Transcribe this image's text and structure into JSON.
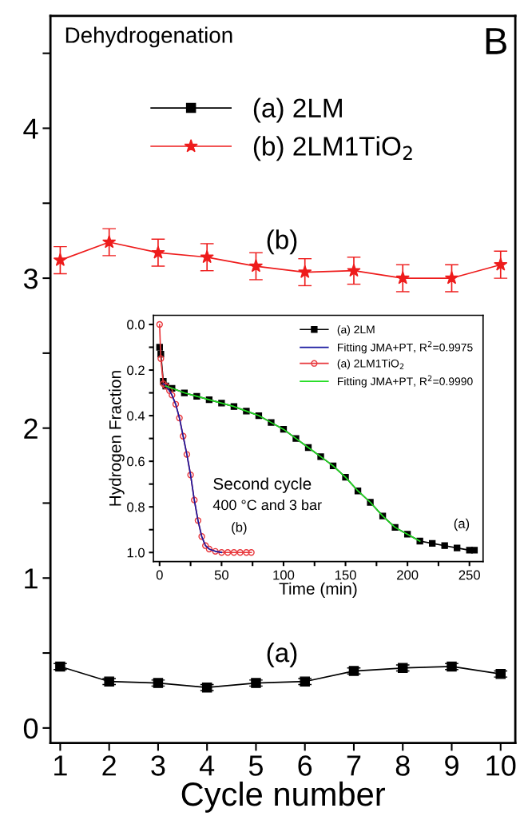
{
  "chart_data": [
    {
      "type": "line",
      "xlabel": "Cycle number",
      "x": [
        1,
        2,
        3,
        4,
        5,
        6,
        7,
        8,
        9,
        10
      ],
      "xlim": [
        0.8,
        10.3
      ],
      "xticks": [
        1,
        2,
        3,
        4,
        5,
        6,
        7,
        8,
        9,
        10
      ],
      "ylim": [
        -0.1,
        4.75
      ],
      "yticks": [
        0,
        {
          "value": 0.5,
          "label": null
        },
        1,
        {
          "value": 1.5,
          "label": null
        },
        2,
        {
          "value": 2.5,
          "label": null
        },
        3,
        {
          "value": 3.5,
          "label": null
        },
        4,
        {
          "value": 4.5,
          "label": null
        }
      ],
      "legend": "top",
      "grid": false,
      "series": [
        {
          "name": "(a) 2LM",
          "color": "#000000",
          "marker": "square",
          "values": [
            0.41,
            0.31,
            0.3,
            0.27,
            0.3,
            0.31,
            0.38,
            0.4,
            0.41,
            0.36
          ],
          "errors": [
            0.02,
            0.02,
            0.02,
            0.02,
            0.02,
            0.02,
            0.02,
            0.02,
            0.02,
            0.02
          ]
        },
        {
          "name": "(b) 2LM1TiO$_{2}$",
          "color": "#ee1c1c",
          "marker": "star",
          "values": [
            3.12,
            3.24,
            3.17,
            3.14,
            3.08,
            3.04,
            3.05,
            3.0,
            3.0,
            3.09
          ],
          "errors": [
            0.09,
            0.09,
            0.09,
            0.09,
            0.09,
            0.09,
            0.09,
            0.09,
            0.09,
            0.09
          ]
        }
      ],
      "annotations": [
        "Dehydrogenation",
        "B",
        "(b)",
        "(a)"
      ]
    },
    {
      "type": "line",
      "xlabel": "Time (min)",
      "ylabel": "Hydrogen Fraction",
      "xlim": [
        -5,
        261
      ],
      "xticks": [
        0,
        {
          "value": 25,
          "label": null
        },
        50,
        {
          "value": 75,
          "label": null
        },
        100,
        {
          "value": 125,
          "label": null
        },
        150,
        {
          "value": 175,
          "label": null
        },
        200,
        {
          "value": 225,
          "label": null
        },
        250
      ],
      "ylim": [
        1.04,
        -0.04
      ],
      "yticks": [
        {
          "value": 0.0,
          "label": "0.0"
        },
        {
          "value": 0.1,
          "label": null
        },
        0.2,
        {
          "value": 0.3,
          "label": null
        },
        0.4,
        {
          "value": 0.5,
          "label": null
        },
        0.6,
        {
          "value": 0.7,
          "label": null
        },
        0.8,
        {
          "value": 0.9,
          "label": null
        },
        {
          "value": 1.0,
          "label": "1.0"
        }
      ],
      "legend": "top right",
      "grid": false,
      "series": [
        {
          "name": "(a) 2LM",
          "color": "#000000",
          "marker": "square",
          "x": [
            0,
            1,
            3,
            5,
            10,
            20,
            30,
            40,
            50,
            60,
            70,
            80,
            90,
            100,
            110,
            120,
            130,
            140,
            150,
            160,
            170,
            180,
            190,
            200,
            210,
            220,
            230,
            240,
            250,
            254
          ],
          "values": [
            0.1,
            0.13,
            0.25,
            0.27,
            0.28,
            0.3,
            0.315,
            0.33,
            0.345,
            0.36,
            0.38,
            0.4,
            0.43,
            0.46,
            0.5,
            0.54,
            0.58,
            0.62,
            0.67,
            0.73,
            0.78,
            0.84,
            0.89,
            0.92,
            0.95,
            0.96,
            0.97,
            0.98,
            0.99,
            0.99
          ]
        },
        {
          "name": "Fitting JMA+PT, R$^{2}$=0.9975",
          "color": "#1a1aa0",
          "marker": "none",
          "x": [
            3,
            5,
            8,
            10,
            13,
            16,
            19,
            22,
            25,
            28,
            31,
            34,
            37,
            40,
            45,
            50
          ],
          "values": [
            0.26,
            0.27,
            0.29,
            0.31,
            0.35,
            0.41,
            0.49,
            0.57,
            0.66,
            0.77,
            0.86,
            0.93,
            0.97,
            0.985,
            0.995,
            1.0
          ]
        },
        {
          "name": "(a) 2LM1TiO$_{2}$",
          "color": "#e8383d",
          "marker": "circle",
          "x": [
            0,
            1,
            3,
            5,
            8,
            10,
            13,
            16,
            19,
            22,
            25,
            28,
            31,
            34,
            37,
            40,
            45,
            50,
            55,
            60,
            65,
            70,
            74
          ],
          "values": [
            0.0,
            0.15,
            0.26,
            0.27,
            0.29,
            0.31,
            0.35,
            0.41,
            0.49,
            0.57,
            0.66,
            0.77,
            0.86,
            0.93,
            0.97,
            0.985,
            0.995,
            1.0,
            1.0,
            1.0,
            1.0,
            1.0,
            1.0
          ]
        },
        {
          "name": "Fitting JMA+PT, R$^{2}$=0.9990",
          "color": "#22dd22",
          "marker": "none",
          "x": [
            5,
            10,
            20,
            30,
            40,
            50,
            60,
            70,
            80,
            90,
            100,
            110,
            120,
            130,
            140,
            150,
            160,
            170,
            180,
            190,
            200,
            210
          ],
          "values": [
            0.27,
            0.28,
            0.3,
            0.315,
            0.33,
            0.345,
            0.36,
            0.38,
            0.4,
            0.43,
            0.46,
            0.5,
            0.54,
            0.58,
            0.62,
            0.67,
            0.73,
            0.78,
            0.84,
            0.89,
            0.92,
            0.95
          ]
        }
      ],
      "annotations": [
        "Second cycle",
        "400 °C and 3 bar",
        "(b)",
        "(a)"
      ]
    }
  ]
}
